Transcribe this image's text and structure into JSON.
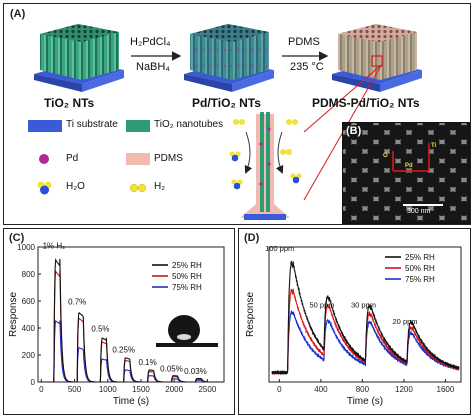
{
  "panel_a": {
    "tag": "(A)",
    "stages": [
      "TiO₂ NTs",
      "Pd/TiO₂ NTs",
      "PDMS-Pd/TiO₂ NTs"
    ],
    "arrow1": {
      "top": "H₂PdCl₄",
      "bottom": "NaBH₄"
    },
    "arrow2": {
      "top": "PDMS",
      "bottom": "235 °C"
    },
    "legend": {
      "ti_substrate": "Ti substrate",
      "tio2_nanotubes": "TiO₂ nanotubes",
      "pd": "Pd",
      "pdms": "PDMS",
      "h2o": "H₂O",
      "h2": "H₂"
    },
    "colors": {
      "substrate": "#3b5bd6",
      "nanotube": "#2e9b77",
      "pd": "#b0289a",
      "pdms": "#f2b9ae",
      "h2": "#f2e23a",
      "h2o_o": "#2a4fd8"
    }
  },
  "panel_b": {
    "tag": "(B)",
    "scale_bar": "300 nm",
    "axis_labels": [
      "O",
      "Pd",
      "Ti"
    ]
  },
  "panel_c": {
    "tag": "(C)",
    "chart_data": {
      "type": "line",
      "xlabel": "Time (s)",
      "ylabel": "Response",
      "xlim": [
        -50,
        2750
      ],
      "ylim": [
        0,
        1000
      ],
      "xticks": [
        0,
        500,
        1000,
        1500,
        2000,
        2500
      ],
      "yticks": [
        0,
        200,
        400,
        600,
        800,
        1000
      ],
      "legend_position": "top-right",
      "series": [
        {
          "name": "25% RH",
          "color": "#111111",
          "peaks": [
            960,
            545,
            345,
            190,
            95,
            50,
            28
          ]
        },
        {
          "name": "50% RH",
          "color": "#d41515",
          "peaks": [
            870,
            500,
            315,
            170,
            82,
            42,
            22
          ]
        },
        {
          "name": "75% RH",
          "color": "#1a2fd0",
          "peaks": [
            480,
            270,
            180,
            95,
            50,
            25,
            14
          ]
        }
      ],
      "pulse_starts": [
        190,
        540,
        890,
        1240,
        1600,
        1960,
        2320
      ],
      "annotations": [
        "1% H₂",
        "0.7%",
        "0.5%",
        "0.25%",
        "0.1%",
        "0.05%",
        "0.03%"
      ]
    }
  },
  "panel_d": {
    "tag": "(D)",
    "chart_data": {
      "type": "line",
      "xlabel": "Time (s)",
      "ylabel": "Response",
      "xlim": [
        -100,
        1750
      ],
      "xticks": [
        0,
        400,
        800,
        1200,
        1600
      ],
      "legend_position": "top-right",
      "series": [
        {
          "name": "25% RH",
          "color": "#111111",
          "peaks": [
            1.0,
            0.52,
            0.52,
            0.38
          ]
        },
        {
          "name": "50% RH",
          "color": "#d41515",
          "peaks": [
            0.75,
            0.48,
            0.46,
            0.34
          ]
        },
        {
          "name": "75% RH",
          "color": "#1a2fd0",
          "peaks": [
            0.55,
            0.38,
            0.4,
            0.3
          ]
        }
      ],
      "pulse_starts": [
        80,
        430,
        830,
        1230
      ],
      "annotations": [
        "100 ppm",
        "50 ppm",
        "30 ppm",
        "20 ppm"
      ]
    }
  }
}
